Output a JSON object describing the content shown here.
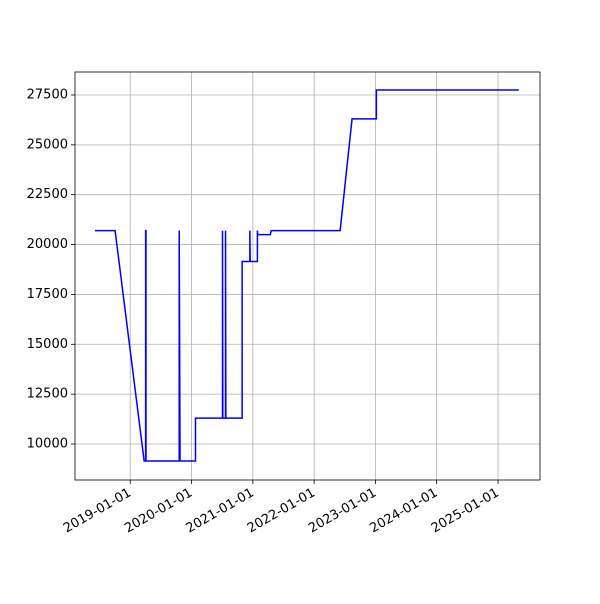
{
  "chart_data": {
    "type": "line",
    "x": [
      "2018-06-05",
      "2018-10-03",
      "2019-03-25",
      "2019-04-03",
      "2019-04-03",
      "2019-04-05",
      "2019-04-05",
      "2019-10-20",
      "2019-10-20",
      "2019-10-25",
      "2020-01-25",
      "2020-01-25",
      "2020-07-04",
      "2020-07-04",
      "2020-07-06",
      "2020-07-22",
      "2020-07-22",
      "2020-07-24",
      "2020-10-29",
      "2020-10-29",
      "2020-12-14",
      "2020-12-14",
      "2020-12-16",
      "2021-01-28",
      "2021-01-28",
      "2021-01-30",
      "2021-04-15",
      "2021-04-20",
      "2022-06-05",
      "2022-08-15",
      "2023-01-07",
      "2023-01-07",
      "2025-05-05"
    ],
    "values": [
      20700,
      20700,
      9150,
      9150,
      20700,
      20700,
      9150,
      9150,
      20700,
      9150,
      9150,
      11300,
      11300,
      20700,
      11300,
      11300,
      20700,
      11300,
      11300,
      19150,
      19150,
      20700,
      19150,
      19150,
      20700,
      20500,
      20500,
      20700,
      20700,
      26300,
      26300,
      27750,
      27750
    ],
    "color": "#0000ff",
    "xlim": [
      "2018-02-06",
      "2025-09-08"
    ],
    "xticks": [
      "2019-01-01",
      "2020-01-01",
      "2021-01-01",
      "2022-01-01",
      "2023-01-01",
      "2024-01-01",
      "2025-01-01"
    ],
    "ylim": [
      8195,
      28653
    ],
    "yticks": [
      10000,
      12500,
      15000,
      17500,
      20000,
      22500,
      25000,
      27500
    ],
    "grid": true
  }
}
